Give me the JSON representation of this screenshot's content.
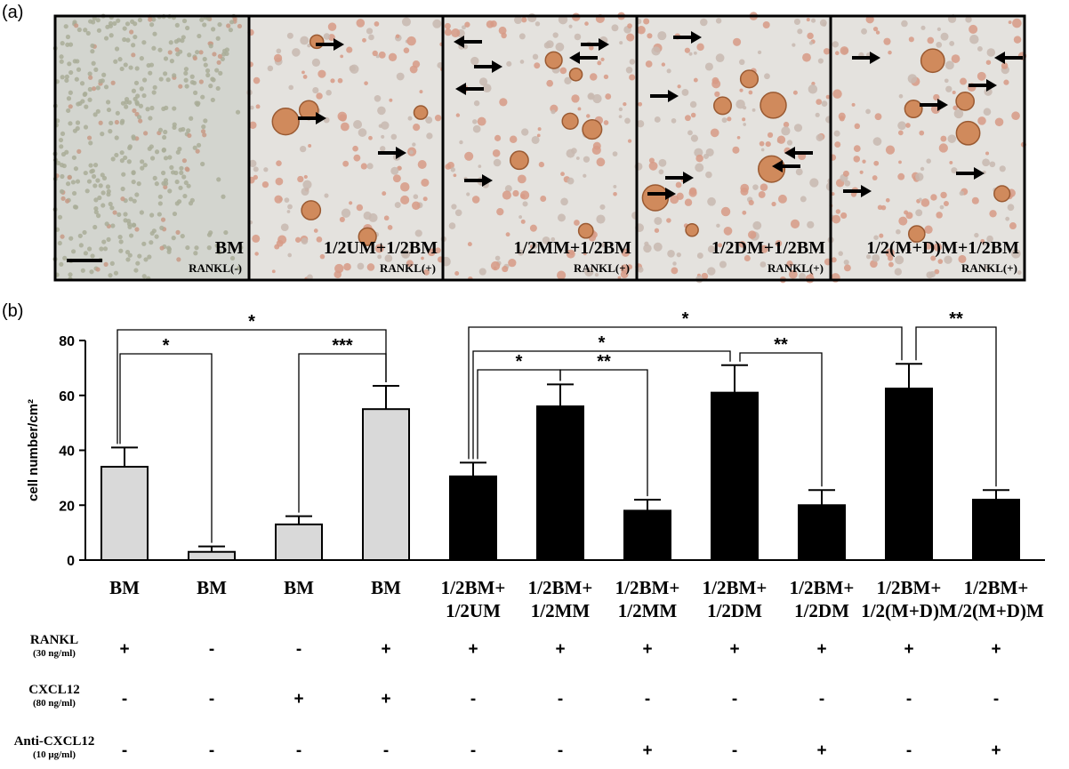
{
  "panel_a": {
    "label": "(a)",
    "panels": [
      {
        "title": "BM",
        "condition": "RANKL(-)"
      },
      {
        "title": "1/2UM+1/2BM",
        "condition": "RANKL(+)"
      },
      {
        "title": "1/2MM+1/2BM",
        "condition": "RANKL(+)"
      },
      {
        "title": "1/2DM+1/2BM",
        "condition": "RANKL(+)"
      },
      {
        "title": "1/2(M+D)M+1/2BM",
        "condition": "RANKL(+)"
      }
    ]
  },
  "chart_data": {
    "type": "bar",
    "panel_label": "(b)",
    "ylabel": "cell number/cm²",
    "categories": [
      "BM",
      "BM",
      "BM",
      "BM",
      "1/2BM+\n1/2UM",
      "1/2BM+\n1/2MM",
      "1/2BM+\n1/2MM",
      "1/2BM+\n1/2DM",
      "1/2BM+\n1/2DM",
      "1/2BM+\n1/2(M+D)M",
      "1/2BM+\n1/2(M+D)M"
    ],
    "values": [
      34,
      3,
      13,
      55,
      30.5,
      56,
      18,
      61,
      20,
      62.5,
      22
    ],
    "errors": [
      7,
      2,
      3,
      8.5,
      5,
      8,
      4,
      10,
      5.5,
      9,
      3.5
    ],
    "colors": [
      "#d9d9d9",
      "#d9d9d9",
      "#d9d9d9",
      "#d9d9d9",
      "#000000",
      "#000000",
      "#000000",
      "#000000",
      "#000000",
      "#000000",
      "#000000"
    ],
    "ylim": [
      0,
      80
    ],
    "yticks": [
      0,
      20,
      40,
      60,
      80
    ],
    "significance": [
      {
        "from": 0,
        "to": 1,
        "label": "*"
      },
      {
        "from": 0,
        "to": 3,
        "label": "*"
      },
      {
        "from": 2,
        "to": 3,
        "label": "***"
      },
      {
        "from": 4,
        "to": 5,
        "label": "*"
      },
      {
        "from": 5,
        "to": 6,
        "label": "**"
      },
      {
        "from": 4,
        "to": 7,
        "label": "*"
      },
      {
        "from": 7,
        "to": 8,
        "label": "**"
      },
      {
        "from": 4,
        "to": 9,
        "label": "*"
      },
      {
        "from": 9,
        "to": 10,
        "label": "**"
      }
    ],
    "treatments": [
      {
        "name": "RANKL",
        "dose": "(30 ng/ml)",
        "signs": [
          "+",
          "-",
          "-",
          "+",
          "+",
          "+",
          "+",
          "+",
          "+",
          "+",
          "+"
        ]
      },
      {
        "name": "CXCL12",
        "dose": "(80 ng/ml)",
        "signs": [
          "-",
          "-",
          "+",
          "+",
          "-",
          "-",
          "-",
          "-",
          "-",
          "-",
          "-"
        ]
      },
      {
        "name": "Anti-CXCL12",
        "dose": "(10 μg/ml)",
        "signs": [
          "-",
          "-",
          "-",
          "-",
          "-",
          "-",
          "+",
          "-",
          "+",
          "-",
          "+"
        ]
      }
    ]
  }
}
